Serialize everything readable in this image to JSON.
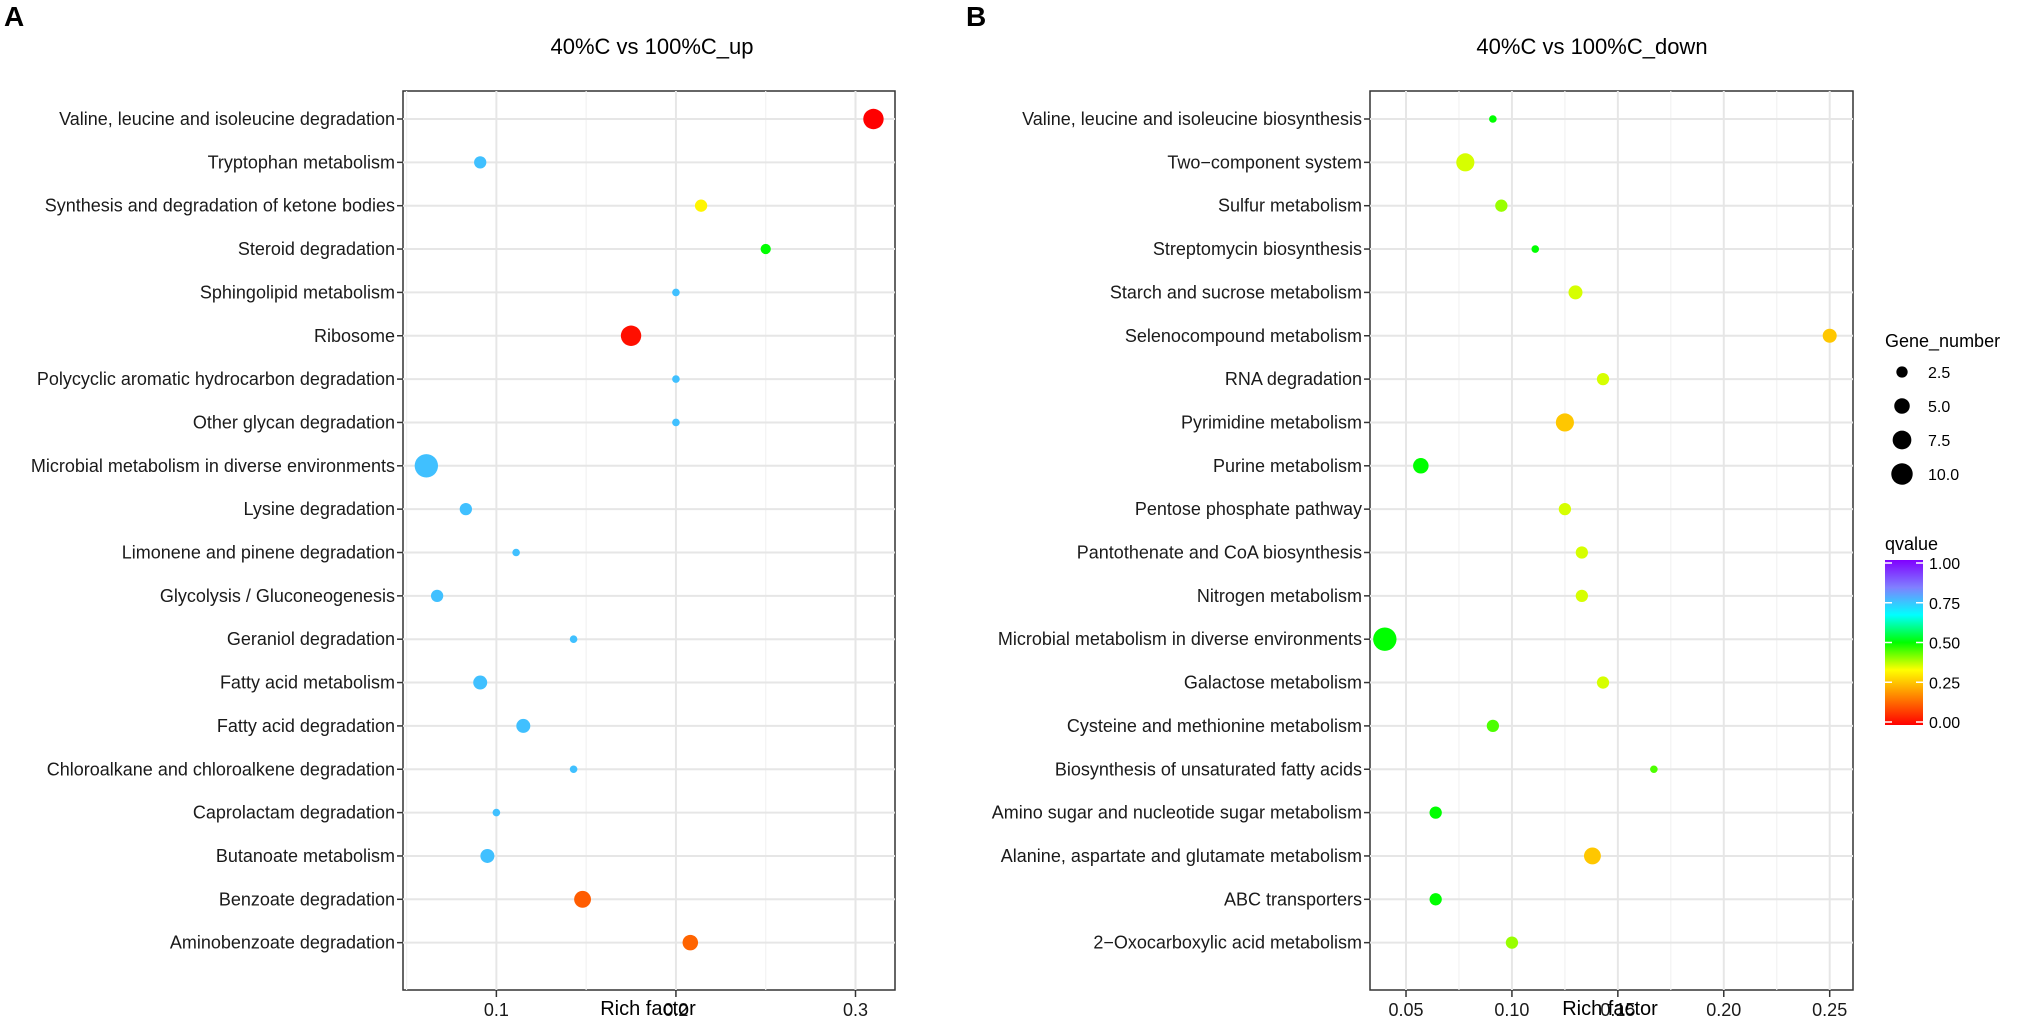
{
  "chart_data": [
    {
      "panel": "A",
      "type": "scatter",
      "title": "40%C vs 100%C_up",
      "xlabel": "Rich factor",
      "ylabel": "",
      "xlim": [
        0.048,
        0.322
      ],
      "xticks": [
        0.1,
        0.2,
        0.3
      ],
      "xtick_labels": [
        "0.1",
        "0.2",
        "0.3"
      ],
      "grid": true,
      "categories": [
        "Valine, leucine and isoleucine degradation",
        "Tryptophan metabolism",
        "Synthesis and degradation of ketone bodies",
        "Steroid degradation",
        "Sphingolipid metabolism",
        "Ribosome",
        "Polycyclic aromatic hydrocarbon degradation",
        "Other glycan degradation",
        "Microbial metabolism in diverse environments",
        "Lysine degradation",
        "Limonene and pinene degradation",
        "Glycolysis / Gluconeogenesis",
        "Geraniol degradation",
        "Fatty acid metabolism",
        "Fatty acid degradation",
        "Chloroalkane and chloroalkene degradation",
        "Caprolactam degradation",
        "Butanoate metabolism",
        "Benzoate degradation",
        "Aminobenzoate degradation"
      ],
      "points": [
        {
          "pathway": "Valine, leucine and isoleucine degradation",
          "rich_factor": 0.31,
          "gene_number": 9,
          "qvalue": 0.0
        },
        {
          "pathway": "Tryptophan metabolism",
          "rich_factor": 0.091,
          "gene_number": 3,
          "qvalue": 0.75
        },
        {
          "pathway": "Synthesis and degradation of ketone bodies",
          "rich_factor": 0.214,
          "gene_number": 3,
          "qvalue": 0.32
        },
        {
          "pathway": "Steroid degradation",
          "rich_factor": 0.25,
          "gene_number": 2,
          "qvalue": 0.5
        },
        {
          "pathway": "Sphingolipid metabolism",
          "rich_factor": 0.2,
          "gene_number": 1,
          "qvalue": 0.75
        },
        {
          "pathway": "Ribosome",
          "rich_factor": 0.175,
          "gene_number": 9,
          "qvalue": 0.02
        },
        {
          "pathway": "Polycyclic aromatic hydrocarbon degradation",
          "rich_factor": 0.2,
          "gene_number": 1,
          "qvalue": 0.75
        },
        {
          "pathway": "Other glycan degradation",
          "rich_factor": 0.2,
          "gene_number": 1,
          "qvalue": 0.75
        },
        {
          "pathway": "Microbial metabolism in diverse environments",
          "rich_factor": 0.061,
          "gene_number": 12,
          "qvalue": 0.75
        },
        {
          "pathway": "Lysine degradation",
          "rich_factor": 0.083,
          "gene_number": 3,
          "qvalue": 0.75
        },
        {
          "pathway": "Limonene and pinene degradation",
          "rich_factor": 0.111,
          "gene_number": 1,
          "qvalue": 0.75
        },
        {
          "pathway": "Glycolysis / Gluconeogenesis",
          "rich_factor": 0.067,
          "gene_number": 3,
          "qvalue": 0.75
        },
        {
          "pathway": "Geraniol degradation",
          "rich_factor": 0.143,
          "gene_number": 1,
          "qvalue": 0.75
        },
        {
          "pathway": "Fatty acid metabolism",
          "rich_factor": 0.091,
          "gene_number": 4,
          "qvalue": 0.75
        },
        {
          "pathway": "Fatty acid degradation",
          "rich_factor": 0.115,
          "gene_number": 4,
          "qvalue": 0.75
        },
        {
          "pathway": "Chloroalkane and chloroalkene degradation",
          "rich_factor": 0.143,
          "gene_number": 1,
          "qvalue": 0.75
        },
        {
          "pathway": "Caprolactam degradation",
          "rich_factor": 0.1,
          "gene_number": 1,
          "qvalue": 0.75
        },
        {
          "pathway": "Butanoate metabolism",
          "rich_factor": 0.095,
          "gene_number": 4,
          "qvalue": 0.75
        },
        {
          "pathway": "Benzoate degradation",
          "rich_factor": 0.148,
          "gene_number": 6,
          "qvalue": 0.12
        },
        {
          "pathway": "Aminobenzoate degradation",
          "rich_factor": 0.208,
          "gene_number": 5,
          "qvalue": 0.13
        }
      ]
    },
    {
      "panel": "B",
      "type": "scatter",
      "title": "40%C vs 100%C_down",
      "xlabel": "Rich factor",
      "ylabel": "",
      "xlim": [
        0.033,
        0.261
      ],
      "xticks": [
        0.05,
        0.1,
        0.15,
        0.2,
        0.25
      ],
      "xtick_labels": [
        "0.05",
        "0.10",
        "0.15",
        "0.20",
        "0.25"
      ],
      "grid": true,
      "categories": [
        "Valine, leucine and isoleucine biosynthesis",
        "Two−component system",
        "Sulfur metabolism",
        "Streptomycin biosynthesis",
        "Starch and sucrose metabolism",
        "Selenocompound metabolism",
        "RNA degradation",
        "Pyrimidine metabolism",
        "Purine metabolism",
        "Pentose phosphate pathway",
        "Pantothenate and CoA biosynthesis",
        "Nitrogen metabolism",
        "Microbial metabolism in diverse environments",
        "Galactose metabolism",
        "Cysteine and methionine metabolism",
        "Biosynthesis of unsaturated fatty acids",
        "Amino sugar and nucleotide sugar metabolism",
        "Alanine, aspartate and glutamate metabolism",
        "ABC transporters",
        "2−Oxocarboxylic acid metabolism"
      ],
      "points": [
        {
          "pathway": "Valine, leucine and isoleucine biosynthesis",
          "rich_factor": 0.091,
          "gene_number": 1,
          "qvalue": 0.5
        },
        {
          "pathway": "Two−component system",
          "rich_factor": 0.078,
          "gene_number": 7,
          "qvalue": 0.36
        },
        {
          "pathway": "Sulfur metabolism",
          "rich_factor": 0.095,
          "gene_number": 3,
          "qvalue": 0.4
        },
        {
          "pathway": "Streptomycin biosynthesis",
          "rich_factor": 0.111,
          "gene_number": 1,
          "qvalue": 0.5
        },
        {
          "pathway": "Starch and sucrose metabolism",
          "rich_factor": 0.13,
          "gene_number": 4,
          "qvalue": 0.36
        },
        {
          "pathway": "Selenocompound metabolism",
          "rich_factor": 0.25,
          "gene_number": 4,
          "qvalue": 0.26
        },
        {
          "pathway": "RNA degradation",
          "rich_factor": 0.143,
          "gene_number": 3,
          "qvalue": 0.36
        },
        {
          "pathway": "Pyrimidine metabolism",
          "rich_factor": 0.125,
          "gene_number": 7,
          "qvalue": 0.26
        },
        {
          "pathway": "Purine metabolism",
          "rich_factor": 0.057,
          "gene_number": 5,
          "qvalue": 0.5
        },
        {
          "pathway": "Pentose phosphate pathway",
          "rich_factor": 0.125,
          "gene_number": 3,
          "qvalue": 0.36
        },
        {
          "pathway": "Pantothenate and CoA biosynthesis",
          "rich_factor": 0.133,
          "gene_number": 3,
          "qvalue": 0.36
        },
        {
          "pathway": "Nitrogen metabolism",
          "rich_factor": 0.133,
          "gene_number": 3,
          "qvalue": 0.36
        },
        {
          "pathway": "Microbial metabolism in diverse environments",
          "rich_factor": 0.04,
          "gene_number": 12,
          "qvalue": 0.5
        },
        {
          "pathway": "Galactose metabolism",
          "rich_factor": 0.143,
          "gene_number": 3,
          "qvalue": 0.36
        },
        {
          "pathway": "Cysteine and methionine metabolism",
          "rich_factor": 0.091,
          "gene_number": 3,
          "qvalue": 0.45
        },
        {
          "pathway": "Biosynthesis of unsaturated fatty acids",
          "rich_factor": 0.167,
          "gene_number": 1,
          "qvalue": 0.45
        },
        {
          "pathway": "Amino sugar and nucleotide sugar metabolism",
          "rich_factor": 0.064,
          "gene_number": 3,
          "qvalue": 0.5
        },
        {
          "pathway": "Alanine, aspartate and glutamate metabolism",
          "rich_factor": 0.138,
          "gene_number": 6,
          "qvalue": 0.26
        },
        {
          "pathway": "ABC transporters",
          "rich_factor": 0.064,
          "gene_number": 3,
          "qvalue": 0.5
        },
        {
          "pathway": "2−Oxocarboxylic acid metabolism",
          "rich_factor": 0.1,
          "gene_number": 3,
          "qvalue": 0.4
        }
      ]
    }
  ],
  "legend": {
    "size_title": "Gene_number",
    "size_entries": [
      {
        "label": "2.5",
        "value": 2.5
      },
      {
        "label": "5.0",
        "value": 5.0
      },
      {
        "label": "7.5",
        "value": 7.5
      },
      {
        "label": "10.0",
        "value": 10.0
      }
    ],
    "color_title": "qvalue",
    "color_ticks": [
      {
        "label": "1.00",
        "value": 1.0
      },
      {
        "label": "0.75",
        "value": 0.75
      },
      {
        "label": "0.50",
        "value": 0.5
      },
      {
        "label": "0.25",
        "value": 0.25
      },
      {
        "label": "0.00",
        "value": 0.0
      }
    ],
    "color_range": [
      0,
      1
    ],
    "palette": [
      "#ff0000",
      "#ff8000",
      "#ffff00",
      "#00ff00",
      "#00ffff",
      "#8080ff",
      "#8000ff"
    ]
  },
  "panel_letters": [
    "A",
    "B"
  ]
}
